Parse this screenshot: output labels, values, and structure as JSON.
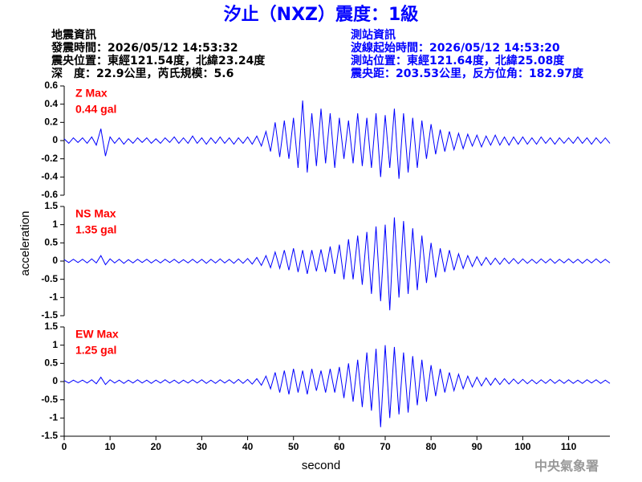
{
  "header": {
    "title": "汐止（NXZ）震度：1級",
    "left_lines": [
      "地震資訊",
      "發震時間：2026/05/12 14:53:32",
      "震央位置：東經121.54度，北緯23.24度",
      "深　度：22.9公里，芮氏規模：5.6"
    ],
    "right_lines": [
      "測站資訊",
      "波線起始時間：2026/05/12 14:53:20",
      "測站位置：東經121.64度，北緯25.08度",
      "震央距：203.53公里，反方位角：182.97度"
    ],
    "footer": "中央氣象署"
  },
  "chart_data": {
    "type": "line",
    "x_label": "second",
    "y_label": "acceleration",
    "label_color": "#ff0000",
    "xlim": [
      0,
      119
    ],
    "xticks": [
      0,
      10,
      20,
      30,
      40,
      50,
      60,
      70,
      80,
      90,
      100,
      110
    ],
    "x": [
      0,
      1,
      2,
      3,
      4,
      5,
      6,
      7,
      8,
      9,
      10,
      11,
      12,
      13,
      14,
      15,
      16,
      17,
      18,
      19,
      20,
      21,
      22,
      23,
      24,
      25,
      26,
      27,
      28,
      29,
      30,
      31,
      32,
      33,
      34,
      35,
      36,
      37,
      38,
      39,
      40,
      41,
      42,
      43,
      44,
      45,
      46,
      47,
      48,
      49,
      50,
      51,
      52,
      53,
      54,
      55,
      56,
      57,
      58,
      59,
      60,
      61,
      62,
      63,
      64,
      65,
      66,
      67,
      68,
      69,
      70,
      71,
      72,
      73,
      74,
      75,
      76,
      77,
      78,
      79,
      80,
      81,
      82,
      83,
      84,
      85,
      86,
      87,
      88,
      89,
      90,
      91,
      92,
      93,
      94,
      95,
      96,
      97,
      98,
      99,
      100,
      101,
      102,
      103,
      104,
      105,
      106,
      107,
      108,
      109,
      110,
      111,
      112,
      113,
      114,
      115,
      116,
      117,
      118,
      119
    ],
    "series": [
      {
        "name": "Z Max",
        "max_label": "0.44 gal",
        "color": "#0000ff",
        "ylim": [
          -0.6,
          0.6
        ],
        "yticks": [
          -0.6,
          -0.4,
          -0.2,
          0,
          0.2,
          0.4,
          0.6
        ],
        "values": [
          0.02,
          -0.03,
          0.03,
          -0.02,
          0.03,
          -0.03,
          0.04,
          -0.05,
          0.13,
          -0.17,
          0.04,
          -0.03,
          0.03,
          -0.04,
          0.02,
          -0.03,
          0.03,
          -0.02,
          0.03,
          -0.03,
          0.02,
          -0.03,
          0.03,
          -0.02,
          0.04,
          -0.03,
          0.03,
          -0.03,
          0.05,
          -0.03,
          0.03,
          -0.04,
          0.03,
          -0.03,
          0.04,
          -0.03,
          0.03,
          -0.04,
          0.03,
          -0.03,
          0.04,
          -0.04,
          0.05,
          -0.06,
          0.1,
          -0.12,
          0.2,
          -0.18,
          0.22,
          -0.2,
          0.25,
          -0.3,
          0.44,
          -0.35,
          0.3,
          -0.28,
          0.35,
          -0.25,
          0.3,
          -0.3,
          0.25,
          -0.2,
          0.22,
          -0.25,
          0.3,
          -0.28,
          0.25,
          -0.3,
          0.3,
          -0.4,
          0.28,
          -0.3,
          0.35,
          -0.42,
          0.3,
          -0.35,
          0.25,
          -0.3,
          0.22,
          -0.2,
          0.18,
          -0.15,
          0.12,
          -0.12,
          0.1,
          -0.1,
          0.08,
          -0.09,
          0.07,
          -0.06,
          0.06,
          -0.07,
          0.05,
          -0.05,
          0.06,
          -0.05,
          0.04,
          -0.05,
          0.04,
          -0.04,
          0.04,
          -0.04,
          0.03,
          -0.04,
          0.04,
          -0.03,
          0.03,
          -0.04,
          0.03,
          -0.03,
          0.03,
          -0.03,
          0.04,
          -0.03,
          0.03,
          -0.04,
          0.03,
          -0.03,
          0.03,
          -0.03
        ]
      },
      {
        "name": "NS Max",
        "max_label": "1.35 gal",
        "color": "#0000ff",
        "ylim": [
          -1.5,
          1.5
        ],
        "yticks": [
          -1.5,
          -1,
          -0.5,
          0,
          0.5,
          1,
          1.5
        ],
        "values": [
          0.04,
          -0.04,
          0.05,
          -0.04,
          0.05,
          -0.05,
          0.06,
          -0.05,
          0.15,
          -0.1,
          0.06,
          -0.05,
          0.05,
          -0.06,
          0.04,
          -0.05,
          0.05,
          -0.04,
          0.05,
          -0.05,
          0.04,
          -0.05,
          0.05,
          -0.04,
          0.05,
          -0.05,
          0.04,
          -0.05,
          0.05,
          -0.05,
          0.05,
          -0.06,
          0.05,
          -0.05,
          0.06,
          -0.05,
          0.05,
          -0.06,
          0.06,
          -0.06,
          0.07,
          -0.08,
          0.1,
          -0.12,
          0.15,
          -0.18,
          0.25,
          -0.2,
          0.3,
          -0.25,
          0.35,
          -0.3,
          0.3,
          -0.35,
          0.3,
          -0.28,
          0.32,
          -0.3,
          0.4,
          -0.35,
          0.45,
          -0.5,
          0.6,
          -0.5,
          0.7,
          -0.65,
          0.8,
          -0.9,
          0.95,
          -1.1,
          1.0,
          -1.35,
          1.2,
          -1.0,
          1.1,
          -0.9,
          0.9,
          -0.8,
          0.7,
          -0.6,
          0.5,
          -0.45,
          0.35,
          -0.3,
          0.3,
          -0.25,
          0.2,
          -0.2,
          0.15,
          -0.15,
          0.12,
          -0.12,
          0.1,
          -0.1,
          0.08,
          -0.09,
          0.08,
          -0.07,
          0.07,
          -0.07,
          0.06,
          -0.06,
          0.05,
          -0.06,
          0.06,
          -0.05,
          0.06,
          -0.06,
          0.05,
          -0.05,
          0.06,
          -0.05,
          0.05,
          -0.06,
          0.05,
          -0.05,
          0.06,
          -0.05,
          0.05,
          -0.05
        ]
      },
      {
        "name": "EW Max",
        "max_label": "1.25 gal",
        "color": "#0000ff",
        "ylim": [
          -1.5,
          1.5
        ],
        "yticks": [
          -1.5,
          -1,
          -0.5,
          0,
          0.5,
          1,
          1.5
        ],
        "values": [
          0.03,
          -0.04,
          0.04,
          -0.03,
          0.04,
          -0.04,
          0.05,
          -0.06,
          0.12,
          -0.08,
          0.05,
          -0.04,
          0.04,
          -0.05,
          0.04,
          -0.04,
          0.05,
          -0.04,
          0.04,
          -0.05,
          0.04,
          -0.04,
          0.05,
          -0.04,
          0.04,
          -0.05,
          0.04,
          -0.04,
          0.05,
          -0.04,
          0.05,
          -0.05,
          0.04,
          -0.05,
          0.05,
          -0.04,
          0.05,
          -0.05,
          0.06,
          -0.05,
          0.06,
          -0.07,
          0.08,
          -0.1,
          0.15,
          -0.2,
          0.25,
          -0.3,
          0.3,
          -0.35,
          0.35,
          -0.3,
          0.3,
          -0.35,
          0.35,
          -0.25,
          0.3,
          -0.3,
          0.35,
          -0.3,
          0.4,
          -0.45,
          0.5,
          -0.55,
          0.6,
          -0.7,
          0.8,
          -0.8,
          0.9,
          -1.25,
          1.0,
          -1.0,
          0.95,
          -0.9,
          0.8,
          -0.85,
          0.7,
          -0.65,
          0.6,
          -0.55,
          0.45,
          -0.4,
          0.35,
          -0.3,
          0.25,
          -0.25,
          0.2,
          -0.2,
          0.15,
          -0.15,
          0.12,
          -0.12,
          0.1,
          -0.1,
          0.09,
          -0.08,
          0.08,
          -0.07,
          0.07,
          -0.06,
          0.06,
          -0.06,
          0.05,
          -0.06,
          0.05,
          -0.05,
          0.06,
          -0.05,
          0.05,
          -0.05,
          0.05,
          -0.05,
          0.04,
          -0.05,
          0.05,
          -0.04,
          0.05,
          -0.05,
          0.04,
          -0.05
        ]
      }
    ]
  }
}
